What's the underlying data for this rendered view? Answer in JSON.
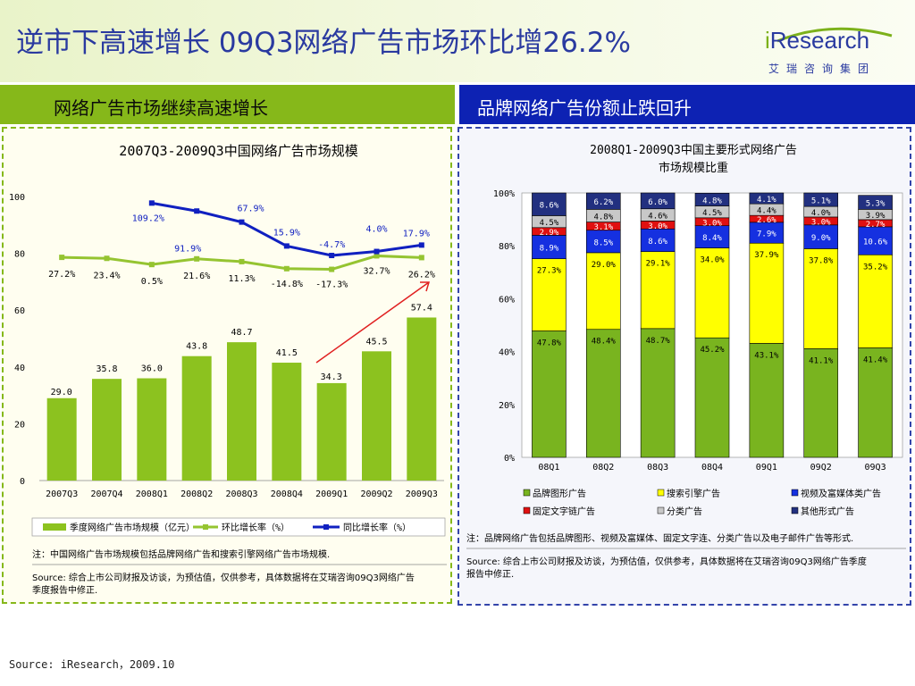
{
  "header": {
    "title": "逆市下高速增长 09Q3网络广告市场环比增26.2%",
    "logo_i": "i",
    "logo_name": "Research",
    "logo_sub": "艾瑞咨询集团"
  },
  "left_section": {
    "banner": "网络广告市场继续高速增长",
    "note": "注：中国网络广告市场规模包括品牌网络广告和搜索引擎网络广告市场规模.",
    "source_line1": "Source: 综合上市公司财报及访谈，为预估值，仅供参考，具体数据将在艾瑞咨询09Q3网络广告",
    "source_line2": "季度报告中修正."
  },
  "right_section": {
    "banner": "品牌网络广告份额止跌回升",
    "note": "注：品牌网络广告包括品牌图形、视频及富媒体、固定文字连、分类广告以及电子邮件广告等形式.",
    "source_line1": "Source: 综合上市公司财报及访谈，为预估值，仅供参考，具体数据将在艾瑞咨询09Q3网络广告季度",
    "source_line2": "报告中修正."
  },
  "footer": {
    "source": "Source: iResearch，2009.10"
  },
  "colors": {
    "green_bar": "#8cc21f",
    "green_line": "#95c431",
    "blue_line": "#1020c0",
    "brand": "#2a3aa0",
    "brand_graphic": "#79b41f",
    "search": "#ffff00",
    "video": "#1530e0",
    "text_link": "#e01010",
    "classified": "#c8c8c8",
    "other": "#223080"
  },
  "chart_data": [
    {
      "type": "bar",
      "title": "2007Q3-2009Q3中国网络广告市场规模",
      "categories": [
        "2007Q3",
        "2007Q4",
        "2008Q1",
        "2008Q2",
        "2008Q3",
        "2008Q4",
        "2009Q1",
        "2009Q2",
        "2009Q3"
      ],
      "y_ticks": [
        "0",
        "20",
        "40",
        "60",
        "80",
        "100"
      ],
      "ylim": [
        0,
        100
      ],
      "series": [
        {
          "name": "季度网络广告市场规模（亿元）",
          "type": "bar",
          "values": [
            29.0,
            35.8,
            36.0,
            43.8,
            48.7,
            41.5,
            34.3,
            45.5,
            57.4
          ],
          "labels": [
            "29.0",
            "35.8",
            "36.0",
            "43.8",
            "48.7",
            "41.5",
            "34.3",
            "45.5",
            "57.4"
          ]
        },
        {
          "name": "环比增长率（%）",
          "type": "line",
          "labels": [
            "27.2%",
            "23.4%",
            "0.5%",
            "21.6%",
            "11.3%",
            "-14.8%",
            "-17.3%",
            "32.7%",
            "26.2%"
          ],
          "values": [
            27.2,
            23.4,
            0.5,
            21.6,
            11.3,
            -14.8,
            -17.3,
            32.7,
            26.2
          ]
        },
        {
          "name": "同比增长率（%）",
          "type": "line",
          "labels": [
            "",
            "",
            "109.2%",
            "91.9%",
            "67.9%",
            "15.9%",
            "-4.7%",
            "4.0%",
            "17.9%"
          ],
          "values": [
            null,
            null,
            109.2,
            91.9,
            67.9,
            15.9,
            -4.7,
            4.0,
            17.9
          ]
        }
      ],
      "legend": "bottom"
    },
    {
      "type": "bar",
      "stacked": true,
      "title_line1": "2008Q1-2009Q3中国主要形式网络广告",
      "title_line2": "市场规模比重",
      "categories": [
        "08Q1",
        "08Q2",
        "08Q3",
        "08Q4",
        "09Q1",
        "09Q2",
        "09Q3"
      ],
      "y_ticks": [
        "0%",
        "20%",
        "40%",
        "60%",
        "80%",
        "100%"
      ],
      "ylim": [
        0,
        100
      ],
      "series": [
        {
          "name": "品牌图形广告",
          "values": [
            47.8,
            48.4,
            48.7,
            45.2,
            43.1,
            41.1,
            41.4
          ],
          "labels": [
            "47.8%",
            "48.4%",
            "48.7%",
            "45.2%",
            "43.1%",
            "41.1%",
            "41.4%"
          ]
        },
        {
          "name": "搜索引擎广告",
          "values": [
            27.3,
            29.0,
            29.1,
            34.0,
            37.9,
            37.8,
            35.2
          ],
          "labels": [
            "27.3%",
            "29.0%",
            "29.1%",
            "34.0%",
            "37.9%",
            "37.8%",
            "35.2%"
          ]
        },
        {
          "name": "视频及富媒体类广告",
          "values": [
            8.9,
            8.5,
            8.6,
            8.4,
            7.9,
            9.0,
            10.6
          ],
          "labels": [
            "8.9%",
            "8.5%",
            "8.6%",
            "8.4%",
            "7.9%",
            "9.0%",
            "10.6%"
          ]
        },
        {
          "name": "固定文字链广告",
          "values": [
            2.9,
            3.1,
            3.0,
            3.0,
            2.6,
            3.0,
            2.7
          ],
          "labels": [
            "2.9%",
            "3.1%",
            "3.0%",
            "3.0%",
            "2.6%",
            "3.0%",
            "2.7%"
          ]
        },
        {
          "name": "分类广告",
          "values": [
            4.5,
            4.8,
            4.6,
            4.5,
            4.4,
            4.0,
            3.9
          ],
          "labels": [
            "4.5%",
            "4.8%",
            "4.6%",
            "4.5%",
            "4.4%",
            "4.0%",
            "3.9%"
          ]
        },
        {
          "name": "其他形式广告",
          "values": [
            8.6,
            6.2,
            6.0,
            4.8,
            4.1,
            5.1,
            5.3
          ],
          "labels": [
            "8.6%",
            "6.2%",
            "6.0%",
            "4.8%",
            "4.1%",
            "5.1%",
            "5.3%"
          ]
        }
      ],
      "legend": "bottom"
    }
  ]
}
